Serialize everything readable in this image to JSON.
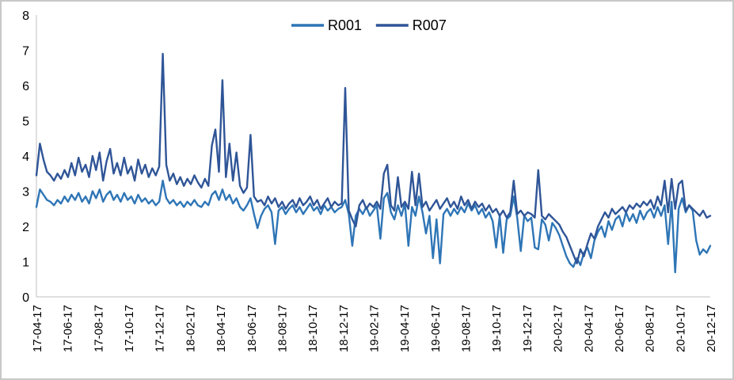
{
  "chart_data": {
    "type": "line",
    "title": "",
    "xlabel": "",
    "ylabel": "",
    "ylim": [
      0,
      8
    ],
    "y_ticks": [
      0,
      1,
      2,
      3,
      4,
      5,
      6,
      7,
      8
    ],
    "grid": false,
    "legend_position": "top-center",
    "x_tick_labels": [
      "17-04-17",
      "17-06-17",
      "17-08-17",
      "17-10-17",
      "17-12-17",
      "18-02-17",
      "18-04-17",
      "18-06-17",
      "18-08-17",
      "18-10-17",
      "18-12-17",
      "19-02-17",
      "19-04-17",
      "19-06-17",
      "19-08-17",
      "19-10-17",
      "19-12-17",
      "20-02-17",
      "20-04-17",
      "20-06-17",
      "20-08-17",
      "20-10-17",
      "20-12-17"
    ],
    "series": [
      {
        "name": "R001",
        "color": "#2E75B6",
        "values": [
          2.55,
          3.05,
          2.9,
          2.75,
          2.7,
          2.6,
          2.75,
          2.65,
          2.85,
          2.7,
          2.9,
          2.75,
          2.95,
          2.7,
          2.85,
          2.65,
          3.0,
          2.8,
          3.05,
          2.7,
          2.9,
          3.0,
          2.75,
          2.9,
          2.7,
          2.95,
          2.75,
          2.85,
          2.65,
          2.9,
          2.7,
          2.8,
          2.65,
          2.75,
          2.6,
          2.7,
          3.3,
          2.8,
          2.65,
          2.75,
          2.6,
          2.7,
          2.55,
          2.7,
          2.6,
          2.75,
          2.6,
          2.55,
          2.7,
          2.6,
          2.9,
          3.0,
          2.75,
          3.05,
          2.75,
          2.9,
          2.65,
          2.8,
          2.55,
          2.45,
          2.6,
          2.8,
          2.35,
          1.95,
          2.3,
          2.5,
          2.6,
          2.4,
          1.5,
          2.45,
          2.55,
          2.35,
          2.5,
          2.6,
          2.4,
          2.55,
          2.35,
          2.5,
          2.65,
          2.45,
          2.55,
          2.35,
          2.6,
          2.45,
          2.55,
          2.4,
          2.5,
          2.55,
          2.75,
          2.35,
          1.45,
          2.3,
          2.5,
          2.35,
          2.55,
          2.3,
          2.45,
          2.6,
          1.65,
          2.8,
          2.95,
          2.4,
          2.2,
          2.6,
          2.3,
          2.65,
          1.45,
          2.55,
          2.3,
          2.85,
          2.4,
          1.8,
          2.3,
          1.1,
          2.2,
          0.95,
          2.35,
          2.5,
          2.3,
          2.5,
          2.35,
          2.55,
          2.4,
          2.65,
          2.45,
          2.6,
          2.35,
          2.5,
          2.25,
          2.4,
          2.15,
          1.4,
          2.3,
          1.25,
          2.2,
          2.3,
          2.85,
          2.25,
          1.3,
          2.3,
          2.15,
          2.25,
          1.4,
          1.35,
          2.2,
          2.05,
          1.6,
          2.1,
          1.95,
          1.75,
          1.45,
          1.15,
          0.95,
          0.85,
          1.1,
          0.9,
          1.25,
          1.4,
          1.1,
          1.6,
          1.85,
          2.0,
          1.7,
          2.15,
          1.9,
          2.2,
          2.3,
          2.0,
          2.4,
          2.15,
          2.35,
          2.1,
          2.45,
          2.2,
          2.4,
          2.5,
          2.25,
          2.55,
          2.3,
          2.6,
          1.5,
          2.7,
          0.7,
          2.5,
          2.8,
          2.4,
          2.6,
          2.45,
          1.6,
          1.2,
          1.35,
          1.25,
          1.45
        ]
      },
      {
        "name": "R007",
        "color": "#2F5597",
        "values": [
          3.45,
          4.35,
          3.9,
          3.55,
          3.45,
          3.3,
          3.5,
          3.35,
          3.6,
          3.4,
          3.8,
          3.45,
          3.95,
          3.55,
          3.75,
          3.4,
          4.0,
          3.6,
          4.1,
          3.3,
          3.85,
          4.2,
          3.5,
          3.8,
          3.45,
          3.95,
          3.5,
          3.7,
          3.3,
          3.9,
          3.5,
          3.75,
          3.4,
          3.65,
          3.45,
          3.7,
          6.9,
          3.75,
          3.3,
          3.5,
          3.2,
          3.4,
          3.15,
          3.35,
          3.2,
          3.45,
          3.25,
          3.1,
          3.35,
          3.15,
          4.3,
          4.75,
          3.55,
          6.15,
          3.4,
          4.35,
          3.3,
          4.1,
          3.15,
          2.95,
          3.1,
          4.6,
          2.85,
          2.7,
          2.75,
          2.6,
          2.85,
          2.65,
          2.8,
          2.55,
          2.7,
          2.5,
          2.65,
          2.75,
          2.55,
          2.8,
          2.6,
          2.7,
          2.85,
          2.6,
          2.75,
          2.5,
          2.65,
          2.8,
          2.55,
          2.7,
          2.6,
          2.65,
          5.93,
          2.45,
          2.2,
          2.0,
          2.6,
          2.75,
          2.5,
          2.65,
          2.55,
          2.7,
          2.5,
          3.5,
          3.75,
          2.6,
          2.45,
          3.4,
          2.55,
          2.7,
          2.5,
          3.55,
          2.6,
          3.5,
          2.55,
          2.7,
          2.45,
          2.6,
          2.75,
          2.5,
          2.65,
          2.8,
          2.55,
          2.7,
          2.5,
          2.85,
          2.6,
          2.75,
          2.5,
          2.7,
          2.55,
          2.65,
          2.45,
          2.6,
          2.4,
          2.5,
          2.3,
          2.45,
          2.25,
          2.4,
          3.3,
          2.35,
          2.45,
          2.3,
          2.4,
          2.35,
          2.25,
          3.6,
          2.3,
          2.2,
          2.35,
          2.25,
          2.15,
          2.05,
          1.85,
          1.7,
          1.45,
          1.2,
          0.95,
          1.35,
          1.15,
          1.5,
          1.8,
          1.65,
          2.0,
          2.2,
          2.4,
          2.25,
          2.5,
          2.35,
          2.45,
          2.55,
          2.4,
          2.6,
          2.5,
          2.65,
          2.55,
          2.7,
          2.6,
          2.75,
          2.5,
          2.85,
          2.6,
          3.3,
          2.4,
          3.35,
          2.5,
          3.2,
          3.3,
          2.45,
          2.6,
          2.5,
          2.4,
          2.3,
          2.45,
          2.25,
          2.3
        ]
      }
    ]
  },
  "colors": {
    "axis_line": "#BFBFBF",
    "tick_text": "#000000",
    "frame_border": "#C8C8C8",
    "background": "#FFFFFF"
  }
}
